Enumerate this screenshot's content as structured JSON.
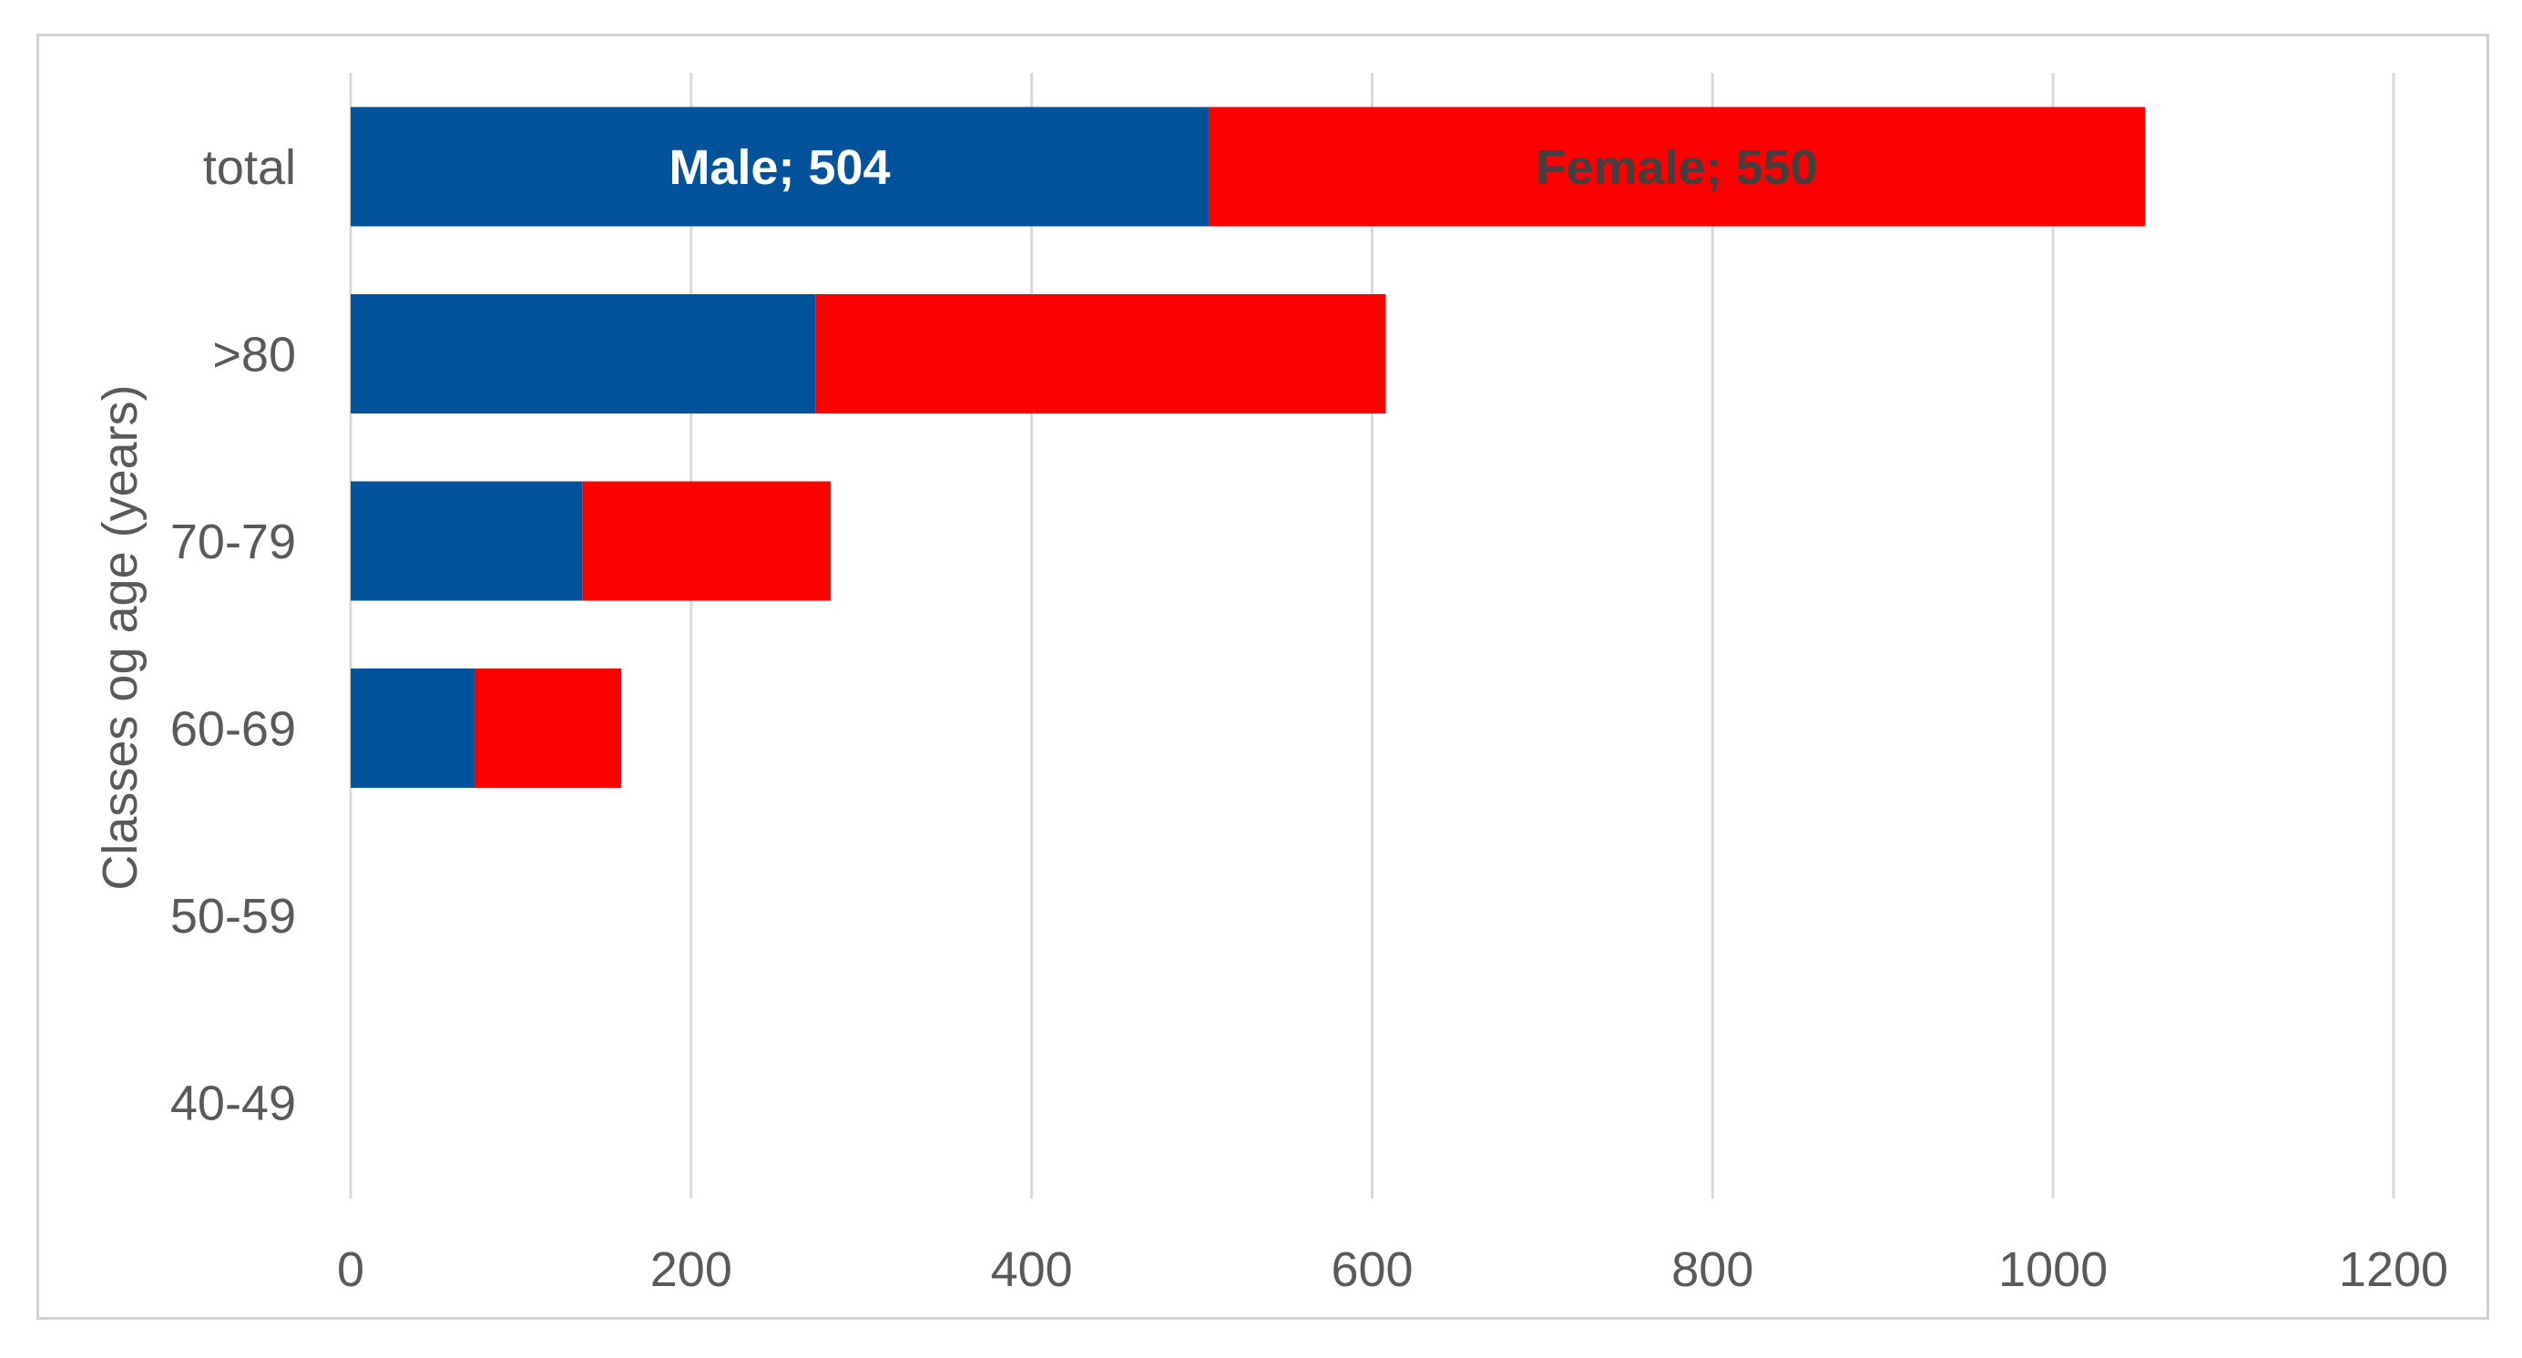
{
  "chart_data": {
    "type": "bar",
    "orientation": "horizontal",
    "stacked": true,
    "title": "",
    "xlabel": "",
    "ylabel": "Classes og age (years)",
    "categories": [
      "total",
      ">80",
      "70-79",
      "60-69",
      "50-59",
      "40-49"
    ],
    "series": [
      {
        "name": "Male",
        "color": "#02529c",
        "label_color": "#ffffff",
        "values": [
          504,
          273,
          136,
          73,
          0,
          0
        ]
      },
      {
        "name": "Female",
        "color": "#fe0000",
        "label_color": "#404040",
        "values": [
          550,
          335,
          146,
          86,
          0,
          0
        ]
      }
    ],
    "data_labels": [
      {
        "series": "Male",
        "category": "total",
        "text": "Male; 504"
      },
      {
        "series": "Female",
        "category": "total",
        "text": "Female; 550"
      }
    ],
    "xlim": [
      0,
      1200
    ],
    "x_ticks": [
      0,
      200,
      400,
      600,
      800,
      1000,
      1200
    ],
    "x_tick_labels": [
      "0",
      "200",
      "400",
      "600",
      "800",
      "1000",
      "1200"
    ],
    "grid": true,
    "grid_color": "#d9d9d9",
    "legend": "none"
  }
}
